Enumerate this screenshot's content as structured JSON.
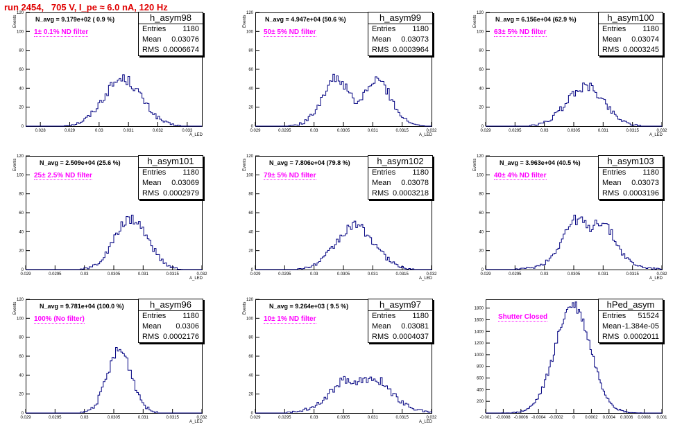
{
  "title": "run 2454,   705 V, I_pe ≈ 6.0 nA, 120 Hz",
  "colors": {
    "title": "#e00000",
    "hist": "#000080",
    "filter": "#ff00ff"
  },
  "chart_data": [
    {
      "type": "bar",
      "stats_title": "h_asym98",
      "entries": "1180",
      "mean": "0.03076",
      "rms": "0.0006674",
      "navg": "N_avg = 9.179e+02 ( 0.9 %)",
      "filter": "1± 0.1% ND filter",
      "ylabel": "Events",
      "xlabel": "A_LED",
      "xlim": [
        0.0275,
        0.0335
      ],
      "ylim": [
        0,
        120
      ],
      "xticks": [
        {
          "v": 0.028,
          "l": "0.028"
        },
        {
          "v": 0.029,
          "l": "0.029"
        },
        {
          "v": 0.03,
          "l": "0.03"
        },
        {
          "v": 0.031,
          "l": "0.031"
        },
        {
          "v": 0.032,
          "l": "0.032"
        },
        {
          "v": 0.033,
          "l": "0.033"
        }
      ],
      "yticks": [
        0,
        20,
        40,
        60,
        80,
        100,
        120
      ],
      "shape": {
        "mu": 0.0308,
        "sigma": 0.00065,
        "peak": 50,
        "bins": 100
      }
    },
    {
      "type": "bar",
      "stats_title": "h_asym99",
      "entries": "1180",
      "mean": "0.03073",
      "rms": "0.0003964",
      "navg": "N_avg = 4.947e+04 (50.6 %)",
      "filter": "50± 5% ND filter",
      "ylabel": "Events",
      "xlabel": "A_LED",
      "xlim": [
        0.029,
        0.032
      ],
      "ylim": [
        0,
        120
      ],
      "xticks": [
        {
          "v": 0.029,
          "l": "0.029"
        },
        {
          "v": 0.0295,
          "l": "0.0295"
        },
        {
          "v": 0.03,
          "l": "0.03"
        },
        {
          "v": 0.0305,
          "l": "0.0305"
        },
        {
          "v": 0.031,
          "l": "0.031"
        },
        {
          "v": 0.0315,
          "l": "0.0315"
        },
        {
          "v": 0.032,
          "l": "0.032"
        }
      ],
      "yticks": [
        0,
        20,
        40,
        60,
        80,
        100,
        120
      ],
      "shape": {
        "double": true,
        "mu1": 0.03035,
        "mu2": 0.0311,
        "sigma": 0.00022,
        "peak": 40,
        "bins": 100
      }
    },
    {
      "type": "bar",
      "stats_title": "h_asym100",
      "entries": "1180",
      "mean": "0.03074",
      "rms": "0.0003245",
      "navg": "N_avg = 6.156e+04 (62.9 %)",
      "filter": "63± 5% ND filter",
      "ylabel": "Events",
      "xlabel": "A_LED",
      "xlim": [
        0.029,
        0.032
      ],
      "ylim": [
        0,
        120
      ],
      "xticks": [
        {
          "v": 0.029,
          "l": "0.029"
        },
        {
          "v": 0.0295,
          "l": "0.0295"
        },
        {
          "v": 0.03,
          "l": "0.03"
        },
        {
          "v": 0.0305,
          "l": "0.0305"
        },
        {
          "v": 0.031,
          "l": "0.031"
        },
        {
          "v": 0.0315,
          "l": "0.0315"
        },
        {
          "v": 0.032,
          "l": "0.032"
        }
      ],
      "yticks": [
        0,
        20,
        40,
        60,
        80,
        100,
        120
      ],
      "shape": {
        "mu": 0.0307,
        "sigma": 0.00032,
        "peak": 42,
        "bins": 100
      }
    },
    {
      "type": "bar",
      "stats_title": "h_asym101",
      "entries": "1180",
      "mean": "0.03069",
      "rms": "0.0002979",
      "navg": "N_avg = 2.509e+04 (25.6 %)",
      "filter": "25± 2.5% ND filter",
      "ylabel": "Events",
      "xlabel": "A_LED",
      "xlim": [
        0.029,
        0.032
      ],
      "ylim": [
        0,
        120
      ],
      "xticks": [
        {
          "v": 0.029,
          "l": "0.029"
        },
        {
          "v": 0.0295,
          "l": "0.0295"
        },
        {
          "v": 0.03,
          "l": "0.03"
        },
        {
          "v": 0.0305,
          "l": "0.0305"
        },
        {
          "v": 0.031,
          "l": "0.031"
        },
        {
          "v": 0.0315,
          "l": "0.0315"
        },
        {
          "v": 0.032,
          "l": "0.032"
        }
      ],
      "yticks": [
        0,
        20,
        40,
        60,
        80,
        100,
        120
      ],
      "shape": {
        "mu": 0.0308,
        "sigma": 0.00028,
        "peak": 54,
        "bins": 100
      }
    },
    {
      "type": "bar",
      "stats_title": "h_asym102",
      "entries": "1180",
      "mean": "0.03078",
      "rms": "0.0003218",
      "navg": "N_avg = 7.806e+04 (79.8 %)",
      "filter": "79± 5% ND filter",
      "ylabel": "Events",
      "xlabel": "A_LED",
      "xlim": [
        0.029,
        0.032
      ],
      "ylim": [
        0,
        120
      ],
      "xticks": [
        {
          "v": 0.029,
          "l": "0.029"
        },
        {
          "v": 0.0295,
          "l": "0.0295"
        },
        {
          "v": 0.03,
          "l": "0.03"
        },
        {
          "v": 0.0305,
          "l": "0.0305"
        },
        {
          "v": 0.031,
          "l": "0.031"
        },
        {
          "v": 0.0315,
          "l": "0.0315"
        },
        {
          "v": 0.032,
          "l": "0.032"
        }
      ],
      "yticks": [
        0,
        20,
        40,
        60,
        80,
        100,
        120
      ],
      "shape": {
        "mu": 0.0307,
        "sigma": 0.00033,
        "peak": 46,
        "bins": 100
      }
    },
    {
      "type": "bar",
      "stats_title": "h_asym103",
      "entries": "1180",
      "mean": "0.03073",
      "rms": "0.0003196",
      "navg": "N_avg = 3.963e+04 (40.5 %)",
      "filter": "40± 4% ND filter",
      "ylabel": "Events",
      "xlabel": "A_LED",
      "xlim": [
        0.029,
        0.032
      ],
      "ylim": [
        0,
        120
      ],
      "xticks": [
        {
          "v": 0.029,
          "l": "0.029"
        },
        {
          "v": 0.0295,
          "l": "0.0295"
        },
        {
          "v": 0.03,
          "l": "0.03"
        },
        {
          "v": 0.0305,
          "l": "0.0305"
        },
        {
          "v": 0.031,
          "l": "0.031"
        },
        {
          "v": 0.0315,
          "l": "0.0315"
        },
        {
          "v": 0.032,
          "l": "0.032"
        }
      ],
      "yticks": [
        0,
        20,
        40,
        60,
        80,
        100,
        120
      ],
      "shape": {
        "double": true,
        "mu1": 0.03055,
        "mu2": 0.03095,
        "sigma": 0.00024,
        "peak": 40,
        "bins": 100
      }
    },
    {
      "type": "bar",
      "stats_title": "h_asym96",
      "entries": "1180",
      "mean": "0.0306",
      "rms": "0.0002176",
      "navg": "N_avg = 9.781e+04 (100.0 %)",
      "filter": "100% (No filter)",
      "ylabel": "Events",
      "xlabel": "A_LED",
      "xlim": [
        0.029,
        0.032
      ],
      "ylim": [
        0,
        120
      ],
      "xticks": [
        {
          "v": 0.029,
          "l": "0.029"
        },
        {
          "v": 0.0295,
          "l": "0.0295"
        },
        {
          "v": 0.03,
          "l": "0.03"
        },
        {
          "v": 0.0305,
          "l": "0.0305"
        },
        {
          "v": 0.031,
          "l": "0.031"
        },
        {
          "v": 0.0315,
          "l": "0.0315"
        },
        {
          "v": 0.032,
          "l": "0.032"
        }
      ],
      "yticks": [
        0,
        20,
        40,
        60,
        80,
        100,
        120
      ],
      "shape": {
        "mu": 0.0306,
        "sigma": 0.00021,
        "peak": 66,
        "bins": 100
      }
    },
    {
      "type": "bar",
      "stats_title": "h_asym97",
      "entries": "1180",
      "mean": "0.03081",
      "rms": "0.0004037",
      "navg": "N_avg = 9.264e+03 ( 9.5 %)",
      "filter": "10± 1% ND filter",
      "ylabel": "Events",
      "xlabel": "A_LED",
      "xlim": [
        0.029,
        0.032
      ],
      "ylim": [
        0,
        120
      ],
      "xticks": [
        {
          "v": 0.029,
          "l": "0.029"
        },
        {
          "v": 0.0295,
          "l": "0.0295"
        },
        {
          "v": 0.03,
          "l": "0.03"
        },
        {
          "v": 0.0305,
          "l": "0.0305"
        },
        {
          "v": 0.031,
          "l": "0.031"
        },
        {
          "v": 0.0315,
          "l": "0.0315"
        },
        {
          "v": 0.032,
          "l": "0.032"
        }
      ],
      "yticks": [
        0,
        20,
        40,
        60,
        80,
        100,
        120
      ],
      "shape": {
        "mu": 0.0308,
        "sigma": 0.00042,
        "peak": 34,
        "flat": true,
        "bins": 100
      }
    },
    {
      "type": "bar",
      "stats_title": "hPed_asym",
      "entries": "51524",
      "mean": "-1.384e-05",
      "rms": "0.0002011",
      "navg": "",
      "filter": "Shutter Closed",
      "ylabel": "",
      "xlabel": "",
      "xlim": [
        -0.001,
        0.001
      ],
      "ylim": [
        0,
        1950
      ],
      "xticks": [
        {
          "v": -0.001,
          "l": "-0.001"
        },
        {
          "v": -0.0008,
          "l": "-0.0008"
        },
        {
          "v": -0.0006,
          "l": "-0.0006"
        },
        {
          "v": -0.0004,
          "l": "-0.0004"
        },
        {
          "v": -0.0002,
          "l": "-0.0002"
        },
        {
          "v": 0,
          "l": "0"
        },
        {
          "v": 0.0002,
          "l": "0.0002"
        },
        {
          "v": 0.0004,
          "l": "0.0004"
        },
        {
          "v": 0.0006,
          "l": "0.0006"
        },
        {
          "v": 0.0008,
          "l": "0.0008"
        },
        {
          "v": 0.001,
          "l": "0.001"
        }
      ],
      "yticks": [
        200,
        400,
        600,
        800,
        1000,
        1200,
        1400,
        1600,
        1800
      ],
      "shape": {
        "mu": -1e-05,
        "sigma": 0.0002,
        "peak": 1850,
        "bins": 120
      }
    }
  ]
}
